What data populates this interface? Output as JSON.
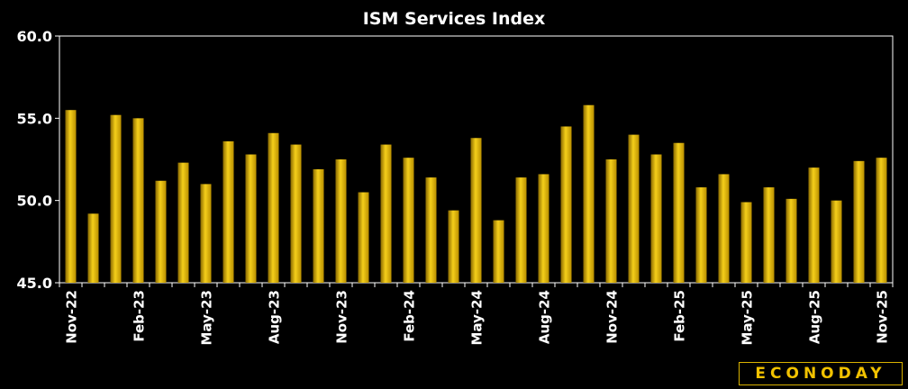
{
  "chart_data": {
    "type": "bar",
    "title": "ISM Services Index",
    "xlabel": "",
    "ylabel": "",
    "ylim": [
      45.0,
      60.0
    ],
    "yticks": [
      "45.0",
      "50.0",
      "55.0",
      "60.0"
    ],
    "ytick_values": [
      45,
      50,
      55,
      60
    ],
    "categories": [
      "Nov-22",
      "Dec-22",
      "Jan-23",
      "Feb-23",
      "Mar-23",
      "Apr-23",
      "May-23",
      "Jun-23",
      "Jul-23",
      "Aug-23",
      "Sep-23",
      "Oct-23",
      "Nov-23",
      "Dec-23",
      "Jan-24",
      "Feb-24",
      "Mar-24",
      "Apr-24",
      "May-24",
      "Jun-24",
      "Jul-24",
      "Aug-24",
      "Sep-24",
      "Oct-24",
      "Nov-24",
      "Dec-24",
      "Jan-25",
      "Feb-25",
      "Mar-25",
      "Apr-25",
      "May-25",
      "Jun-25",
      "Jul-25",
      "Aug-25",
      "Sep-25",
      "Oct-25",
      "Nov-25"
    ],
    "visible_xticks": [
      "Nov-22",
      "Feb-23",
      "May-23",
      "Aug-23",
      "Nov-23",
      "Feb-24",
      "May-24",
      "Aug-24",
      "Nov-24",
      "Feb-25",
      "May-25",
      "Aug-25",
      "Nov-25"
    ],
    "values": [
      55.5,
      49.2,
      55.2,
      55.0,
      51.2,
      52.3,
      51.0,
      53.6,
      52.8,
      54.1,
      53.4,
      51.9,
      52.5,
      50.5,
      53.4,
      52.6,
      51.4,
      49.4,
      53.8,
      48.8,
      51.4,
      51.6,
      54.5,
      55.8,
      52.5,
      54.0,
      52.8,
      53.5,
      50.8,
      51.6,
      49.9,
      50.8,
      50.1,
      52.0,
      50.0,
      52.4,
      52.6
    ],
    "grid": false,
    "legend": "none",
    "bar_color": "#e3b300",
    "background": "#000000",
    "text_color": "#ffffff"
  },
  "brand": {
    "label": "ECONODAY"
  }
}
